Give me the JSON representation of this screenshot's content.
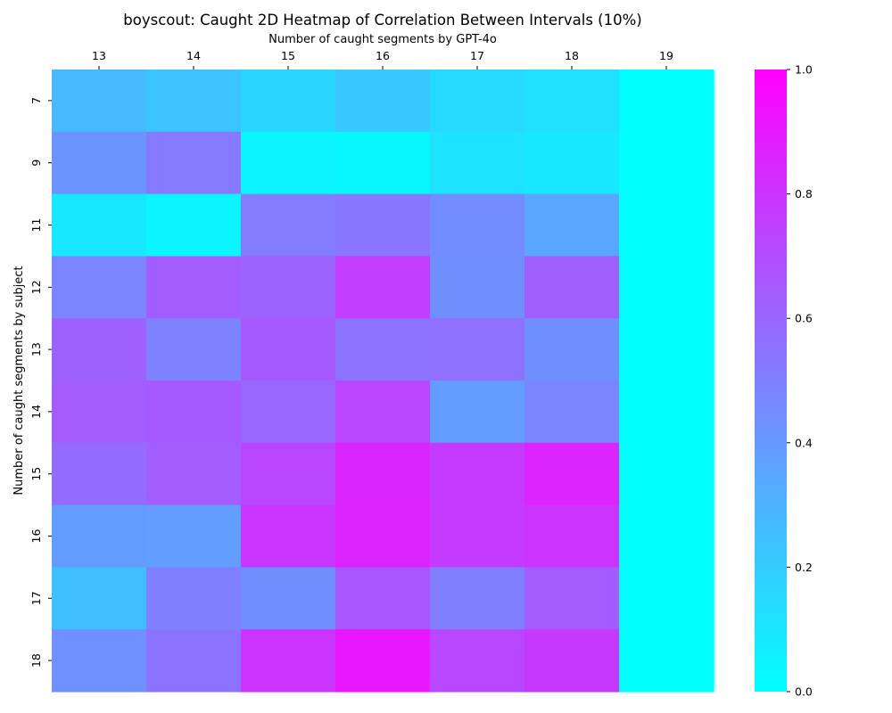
{
  "chart_data": {
    "type": "heatmap",
    "title": "boyscout: Caught 2D Heatmap of Correlation Between Intervals (10%)",
    "xlabel": "Number of caught segments by GPT-4o",
    "ylabel": "Number of caught segments by subject",
    "x_categories": [
      "13",
      "14",
      "15",
      "16",
      "17",
      "18",
      "19"
    ],
    "y_categories": [
      "7",
      "9",
      "11",
      "12",
      "13",
      "14",
      "15",
      "16",
      "17",
      "18"
    ],
    "values": [
      [
        0.27,
        0.23,
        0.16,
        0.22,
        0.15,
        0.12,
        0.0
      ],
      [
        0.42,
        0.52,
        0.04,
        0.03,
        0.11,
        0.09,
        0.0
      ],
      [
        0.09,
        0.04,
        0.51,
        0.54,
        0.45,
        0.35,
        0.0
      ],
      [
        0.48,
        0.64,
        0.61,
        0.76,
        0.44,
        0.63,
        0.0
      ],
      [
        0.62,
        0.49,
        0.65,
        0.55,
        0.56,
        0.44,
        0.0
      ],
      [
        0.64,
        0.65,
        0.6,
        0.72,
        0.39,
        0.48,
        0.0
      ],
      [
        0.58,
        0.64,
        0.73,
        0.85,
        0.77,
        0.86,
        0.0
      ],
      [
        0.39,
        0.38,
        0.79,
        0.86,
        0.77,
        0.8,
        0.0
      ],
      [
        0.25,
        0.5,
        0.44,
        0.66,
        0.5,
        0.64,
        0.0
      ],
      [
        0.43,
        0.55,
        0.8,
        0.91,
        0.72,
        0.78,
        0.0
      ]
    ],
    "colorbar": {
      "min": 0.0,
      "max": 1.0,
      "ticks": [
        "0.0",
        "0.2",
        "0.4",
        "0.6",
        "0.8",
        "1.0"
      ],
      "colormap": "cool",
      "color_low": "#00ffff",
      "color_high": "#ff00ff"
    },
    "grid": false,
    "x_axis_position": "top"
  }
}
